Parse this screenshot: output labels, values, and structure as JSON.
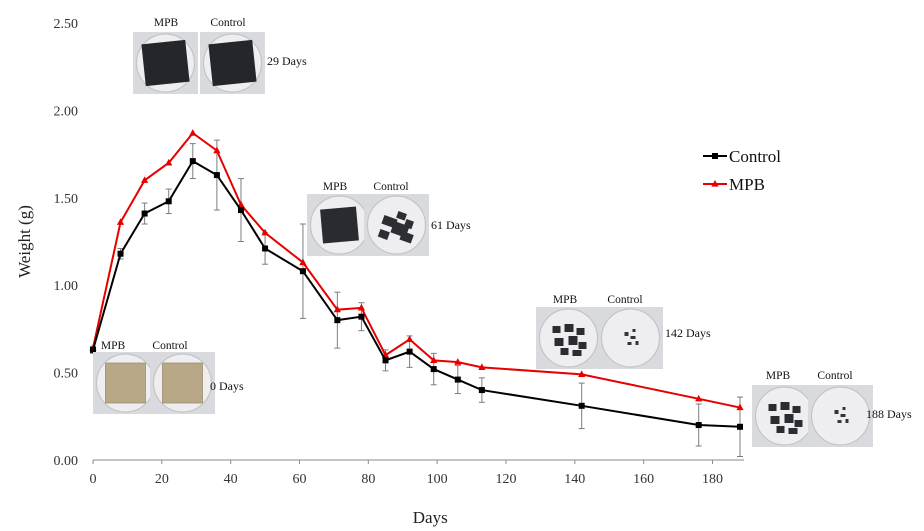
{
  "chart_data": {
    "type": "line",
    "title": "",
    "xlabel": "Days",
    "ylabel": "Weight (g)",
    "xlim": [
      0,
      188
    ],
    "ylim": [
      0,
      2.5
    ],
    "x_ticks": [
      "0",
      "20",
      "40",
      "60",
      "80",
      "100",
      "120",
      "140",
      "160",
      "180"
    ],
    "y_ticks": [
      "0.00",
      "0.50",
      "1.00",
      "1.50",
      "2.00",
      "2.50"
    ],
    "grid": false,
    "legend_position": "right",
    "x": [
      0,
      8,
      15,
      22,
      29,
      36,
      43,
      50,
      61,
      71,
      78,
      85,
      92,
      99,
      106,
      113,
      142,
      176,
      188
    ],
    "series": [
      {
        "name": "Control",
        "color": "#000000",
        "marker": "square",
        "values": [
          0.63,
          1.18,
          1.41,
          1.48,
          1.71,
          1.63,
          1.43,
          1.21,
          1.08,
          0.8,
          0.82,
          0.57,
          0.62,
          0.52,
          0.46,
          0.4,
          0.31,
          0.2,
          0.19
        ],
        "error": [
          0.02,
          0.03,
          0.06,
          0.07,
          0.1,
          0.2,
          0.18,
          0.09,
          0.27,
          0.16,
          0.08,
          0.06,
          0.09,
          0.09,
          0.08,
          0.07,
          0.13,
          0.12,
          0.17
        ]
      },
      {
        "name": "MPB",
        "color": "#e60000",
        "marker": "triangle",
        "values": [
          0.64,
          1.36,
          1.6,
          1.7,
          1.87,
          1.77,
          1.46,
          1.3,
          1.13,
          0.86,
          0.87,
          0.6,
          0.69,
          0.57,
          0.56,
          0.53,
          0.49,
          0.35,
          0.3
        ]
      }
    ],
    "annotations": [
      {
        "id": "d0",
        "labels": [
          "MPB",
          "Control"
        ],
        "text": "0 Days",
        "x": 0,
        "y": 0.45
      },
      {
        "id": "d29",
        "labels": [
          "MPB",
          "Control"
        ],
        "text": "29 Days",
        "x": 30,
        "y": 2.31
      },
      {
        "id": "d61",
        "labels": [
          "MPB",
          "Control"
        ],
        "text": "61 Days",
        "x": 95,
        "y": 1.32
      },
      {
        "id": "d142",
        "labels": [
          "MPB",
          "Control"
        ],
        "text": "142 Days",
        "x": 162,
        "y": 0.72
      },
      {
        "id": "d188",
        "labels": [
          "MPB",
          "Control"
        ],
        "text": "188 Days",
        "x": 208,
        "y": 0.27
      }
    ]
  }
}
